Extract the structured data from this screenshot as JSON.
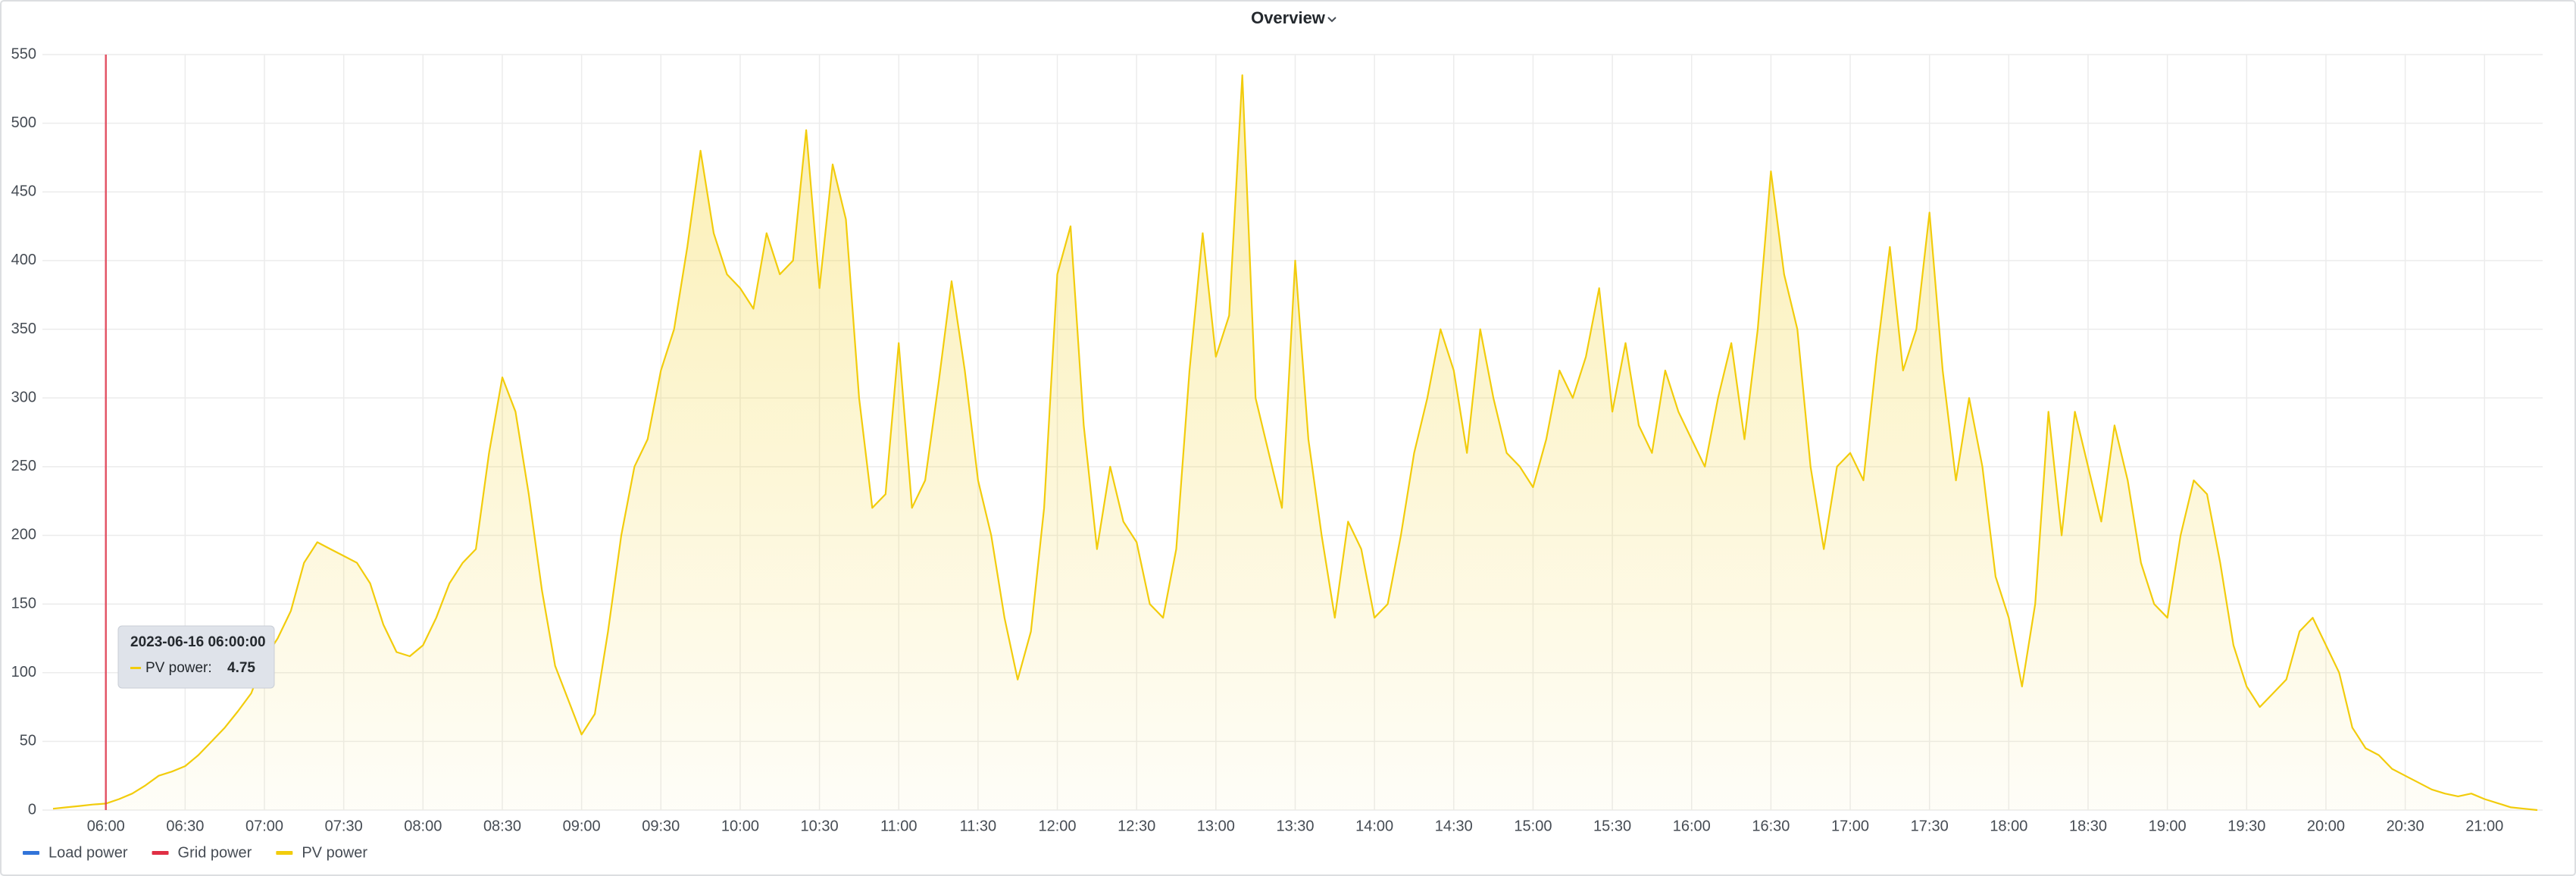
{
  "chart_data": {
    "type": "line",
    "title": "Overview",
    "x": [
      "05:40",
      "05:45",
      "05:50",
      "05:55",
      "06:00",
      "06:05",
      "06:10",
      "06:15",
      "06:20",
      "06:25",
      "06:30",
      "06:35",
      "06:40",
      "06:45",
      "06:50",
      "06:55",
      "07:00",
      "07:05",
      "07:10",
      "07:15",
      "07:20",
      "07:25",
      "07:30",
      "07:35",
      "07:40",
      "07:45",
      "07:50",
      "07:55",
      "08:00",
      "08:05",
      "08:10",
      "08:15",
      "08:20",
      "08:25",
      "08:30",
      "08:35",
      "08:40",
      "08:45",
      "08:50",
      "08:55",
      "09:00",
      "09:05",
      "09:10",
      "09:15",
      "09:20",
      "09:25",
      "09:30",
      "09:35",
      "09:40",
      "09:45",
      "09:50",
      "09:55",
      "10:00",
      "10:05",
      "10:10",
      "10:15",
      "10:20",
      "10:25",
      "10:30",
      "10:35",
      "10:40",
      "10:45",
      "10:50",
      "10:55",
      "11:00",
      "11:05",
      "11:10",
      "11:15",
      "11:20",
      "11:25",
      "11:30",
      "11:35",
      "11:40",
      "11:45",
      "11:50",
      "11:55",
      "12:00",
      "12:05",
      "12:10",
      "12:15",
      "12:20",
      "12:25",
      "12:30",
      "12:35",
      "12:40",
      "12:45",
      "12:50",
      "12:55",
      "13:00",
      "13:05",
      "13:10",
      "13:15",
      "13:20",
      "13:25",
      "13:30",
      "13:35",
      "13:40",
      "13:45",
      "13:50",
      "13:55",
      "14:00",
      "14:05",
      "14:10",
      "14:15",
      "14:20",
      "14:25",
      "14:30",
      "14:35",
      "14:40",
      "14:45",
      "14:50",
      "14:55",
      "15:00",
      "15:05",
      "15:10",
      "15:15",
      "15:20",
      "15:25",
      "15:30",
      "15:35",
      "15:40",
      "15:45",
      "15:50",
      "15:55",
      "16:00",
      "16:05",
      "16:10",
      "16:15",
      "16:20",
      "16:25",
      "16:30",
      "16:35",
      "16:40",
      "16:45",
      "16:50",
      "16:55",
      "17:00",
      "17:05",
      "17:10",
      "17:15",
      "17:20",
      "17:25",
      "17:30",
      "17:35",
      "17:40",
      "17:45",
      "17:50",
      "17:55",
      "18:00",
      "18:05",
      "18:10",
      "18:15",
      "18:20",
      "18:25",
      "18:30",
      "18:35",
      "18:40",
      "18:45",
      "18:50",
      "18:55",
      "19:00",
      "19:05",
      "19:10",
      "19:15",
      "19:20",
      "19:25",
      "19:30",
      "19:35",
      "19:40",
      "19:45",
      "19:50",
      "19:55",
      "20:00",
      "20:05",
      "20:10",
      "20:15",
      "20:20",
      "20:25",
      "20:30",
      "20:35",
      "20:40",
      "20:45",
      "20:50",
      "20:55",
      "21:00",
      "21:05",
      "21:10",
      "21:15",
      "21:20"
    ],
    "series": [
      {
        "name": "Load power",
        "color": "#3274d9"
      },
      {
        "name": "Grid power",
        "color": "#e02f44"
      },
      {
        "name": "PV power",
        "color": "#f2cc0c",
        "values": [
          1,
          2,
          3,
          4,
          4.75,
          8,
          12,
          18,
          25,
          28,
          32,
          40,
          50,
          60,
          72,
          85,
          110,
          125,
          145,
          180,
          195,
          190,
          185,
          180,
          165,
          135,
          115,
          112,
          120,
          140,
          165,
          180,
          190,
          260,
          315,
          290,
          230,
          160,
          105,
          80,
          55,
          70,
          130,
          200,
          250,
          270,
          320,
          350,
          410,
          480,
          420,
          390,
          380,
          365,
          420,
          390,
          400,
          495,
          380,
          470,
          430,
          300,
          220,
          230,
          340,
          220,
          240,
          310,
          385,
          320,
          240,
          200,
          140,
          95,
          130,
          220,
          390,
          425,
          280,
          190,
          250,
          210,
          195,
          150,
          140,
          190,
          320,
          420,
          330,
          360,
          535,
          300,
          260,
          220,
          400,
          270,
          200,
          140,
          210,
          190,
          140,
          150,
          200,
          260,
          300,
          350,
          320,
          260,
          350,
          300,
          260,
          250,
          235,
          270,
          320,
          300,
          330,
          380,
          290,
          340,
          280,
          260,
          320,
          290,
          270,
          250,
          300,
          340,
          270,
          350,
          465,
          390,
          350,
          250,
          190,
          250,
          260,
          240,
          330,
          410,
          320,
          350,
          435,
          320,
          240,
          300,
          250,
          170,
          140,
          90,
          150,
          290,
          200,
          290,
          250,
          210,
          280,
          240,
          180,
          150,
          140,
          200,
          240,
          230,
          180,
          120,
          90,
          75,
          85,
          95,
          130,
          140,
          120,
          100,
          60,
          45,
          40,
          30,
          25,
          20,
          15,
          12,
          10,
          12,
          8,
          5,
          2,
          1,
          0
        ]
      }
    ],
    "xlim": [
      "05:36",
      "21:22"
    ],
    "xticks": [
      "06:00",
      "06:30",
      "07:00",
      "07:30",
      "08:00",
      "08:30",
      "09:00",
      "09:30",
      "10:00",
      "10:30",
      "11:00",
      "11:30",
      "12:00",
      "12:30",
      "13:00",
      "13:30",
      "14:00",
      "14:30",
      "15:00",
      "15:30",
      "16:00",
      "16:30",
      "17:00",
      "17:30",
      "18:00",
      "18:30",
      "19:00",
      "19:30",
      "20:00",
      "20:30",
      "21:00"
    ],
    "ylim": [
      0,
      550
    ],
    "yticks": [
      0,
      50,
      100,
      150,
      200,
      250,
      300,
      350,
      400,
      450,
      500,
      550
    ],
    "grid": true,
    "tooltip": {
      "time": "2023-06-16 06:00:00",
      "label": "PV power:",
      "value": 4.75
    }
  }
}
